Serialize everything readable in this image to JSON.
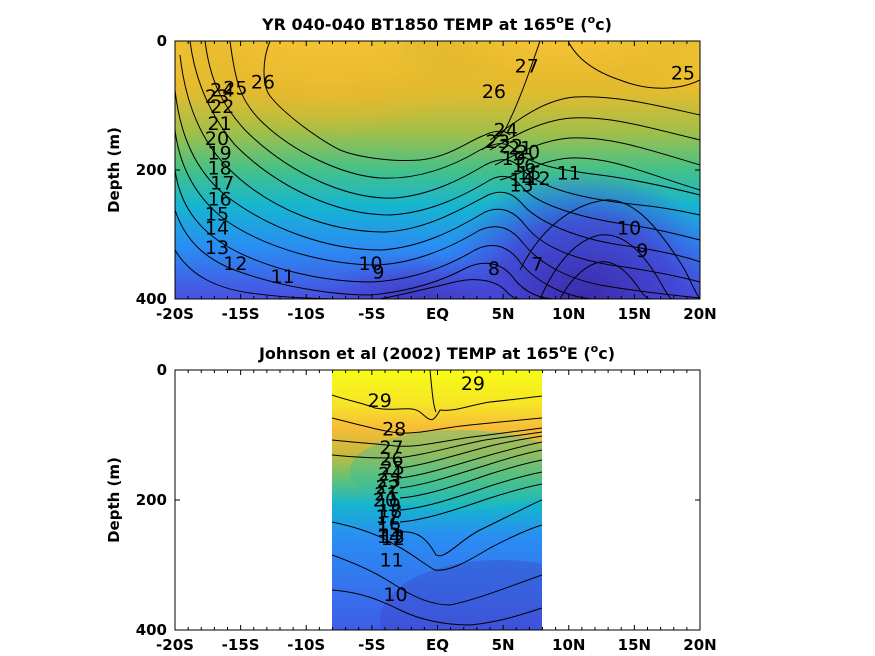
{
  "chart_data": [
    {
      "type": "contour",
      "title_text": "YR 040-040 BT1850 TEMP at 165",
      "title_sup": "o",
      "title_suffix_a": "E (",
      "title_suffix_b": "c)",
      "ylabel": "Depth (m)",
      "x_ticks": [
        "-20S",
        "-15S",
        "-10S",
        "-5S",
        "EQ",
        "5N",
        "10N",
        "15N",
        "20N"
      ],
      "x_tick_values": [
        -20,
        -15,
        -10,
        -5,
        0,
        5,
        10,
        15,
        20
      ],
      "y_ticks": [
        "0",
        "200",
        "400"
      ],
      "y_tick_values": [
        0,
        200,
        400
      ],
      "xlim": [
        -20,
        20
      ],
      "ylim": [
        0,
        400
      ],
      "y_reversed": true,
      "colormap": [
        "#3e26a8",
        "#4550e3",
        "#2e87f7",
        "#1ab2dd",
        "#2cc1a5",
        "#80c463",
        "#d0ba30",
        "#fbc831",
        "#fdd33b",
        "#f9fb15"
      ],
      "temp_range": [
        5,
        30
      ],
      "contour_labels": [
        {
          "text": "26",
          "lon": -13.3,
          "depth": 74
        },
        {
          "text": "25",
          "lon": -15.4,
          "depth": 83
        },
        {
          "text": "24",
          "lon": -16.4,
          "depth": 86
        },
        {
          "text": "23",
          "lon": -16.8,
          "depth": 96
        },
        {
          "text": "22",
          "lon": -16.4,
          "depth": 112
        },
        {
          "text": "21",
          "lon": -16.6,
          "depth": 138
        },
        {
          "text": "20",
          "lon": -16.8,
          "depth": 161
        },
        {
          "text": "19",
          "lon": -16.6,
          "depth": 184
        },
        {
          "text": "18",
          "lon": -16.6,
          "depth": 207
        },
        {
          "text": "17",
          "lon": -16.4,
          "depth": 230
        },
        {
          "text": "16",
          "lon": -16.6,
          "depth": 255
        },
        {
          "text": "15",
          "lon": -16.8,
          "depth": 278
        },
        {
          "text": "14",
          "lon": -16.8,
          "depth": 300
        },
        {
          "text": "13",
          "lon": -16.8,
          "depth": 330
        },
        {
          "text": "12",
          "lon": -15.4,
          "depth": 355
        },
        {
          "text": "11",
          "lon": -11.8,
          "depth": 375
        },
        {
          "text": "10",
          "lon": -5.1,
          "depth": 355
        },
        {
          "text": "9",
          "lon": -4.5,
          "depth": 368
        },
        {
          "text": "8",
          "lon": 4.3,
          "depth": 363
        },
        {
          "text": "7",
          "lon": 7.6,
          "depth": 356
        },
        {
          "text": "27",
          "lon": 6.8,
          "depth": 49
        },
        {
          "text": "26",
          "lon": 4.3,
          "depth": 88
        },
        {
          "text": "25",
          "lon": 18.7,
          "depth": 60
        },
        {
          "text": "24",
          "lon": 5.2,
          "depth": 148
        },
        {
          "text": "23",
          "lon": 4.6,
          "depth": 166
        },
        {
          "text": "22",
          "lon": 5.6,
          "depth": 173
        },
        {
          "text": "21",
          "lon": 6.3,
          "depth": 176
        },
        {
          "text": "20",
          "lon": 6.9,
          "depth": 182
        },
        {
          "text": "19",
          "lon": 5.8,
          "depth": 192
        },
        {
          "text": "16",
          "lon": 6.6,
          "depth": 203
        },
        {
          "text": "15",
          "lon": 7.0,
          "depth": 215
        },
        {
          "text": "14",
          "lon": 6.4,
          "depth": 225
        },
        {
          "text": "13",
          "lon": 6.4,
          "depth": 233
        },
        {
          "text": "12",
          "lon": 7.7,
          "depth": 223
        },
        {
          "text": "11",
          "lon": 10.0,
          "depth": 215
        },
        {
          "text": "10",
          "lon": 14.6,
          "depth": 300
        },
        {
          "text": "9",
          "lon": 15.6,
          "depth": 335
        }
      ]
    },
    {
      "type": "contour",
      "title_text": "Johnson et al (2002) TEMP at 165",
      "title_sup": "o",
      "title_suffix_a": "E (",
      "title_suffix_b": "c)",
      "ylabel": "Depth (m)",
      "x_ticks": [
        "-20S",
        "-15S",
        "-10S",
        "-5S",
        "EQ",
        "5N",
        "10N",
        "15N",
        "20N"
      ],
      "x_tick_values": [
        -20,
        -15,
        -10,
        -5,
        0,
        5,
        10,
        15,
        20
      ],
      "y_ticks": [
        "0",
        "200",
        "400"
      ],
      "y_tick_values": [
        0,
        200,
        400
      ],
      "xlim": [
        -20,
        20
      ],
      "ylim": [
        0,
        400
      ],
      "y_reversed": true,
      "data_extent_lon": [
        -8,
        8
      ],
      "colormap": [
        "#3e26a8",
        "#4550e3",
        "#2e87f7",
        "#1ab2dd",
        "#2cc1a5",
        "#80c463",
        "#d0ba30",
        "#fbc831",
        "#fdd33b",
        "#f9fb15"
      ],
      "temp_range": [
        8,
        30
      ],
      "contour_labels": [
        {
          "text": "29",
          "lon": -4.4,
          "depth": 57
        },
        {
          "text": "29",
          "lon": 2.7,
          "depth": 31
        },
        {
          "text": "28",
          "lon": -3.3,
          "depth": 101
        },
        {
          "text": "27",
          "lon": -3.5,
          "depth": 129
        },
        {
          "text": "26",
          "lon": -3.5,
          "depth": 147
        },
        {
          "text": "25",
          "lon": -3.4,
          "depth": 161
        },
        {
          "text": "24",
          "lon": -3.6,
          "depth": 170
        },
        {
          "text": "23",
          "lon": -3.7,
          "depth": 180
        },
        {
          "text": "22",
          "lon": -3.8,
          "depth": 190
        },
        {
          "text": "21",
          "lon": -3.9,
          "depth": 201
        },
        {
          "text": "20",
          "lon": -4.0,
          "depth": 210
        },
        {
          "text": "19",
          "lon": -3.7,
          "depth": 218
        },
        {
          "text": "18",
          "lon": -3.6,
          "depth": 227
        },
        {
          "text": "17",
          "lon": -3.8,
          "depth": 235
        },
        {
          "text": "16",
          "lon": -3.7,
          "depth": 246
        },
        {
          "text": "15",
          "lon": -3.7,
          "depth": 256
        },
        {
          "text": "14",
          "lon": -3.7,
          "depth": 266
        },
        {
          "text": "13",
          "lon": -3.4,
          "depth": 266
        },
        {
          "text": "12",
          "lon": -3.4,
          "depth": 269
        },
        {
          "text": "11",
          "lon": -3.5,
          "depth": 302
        },
        {
          "text": "10",
          "lon": -3.2,
          "depth": 355
        }
      ]
    }
  ]
}
